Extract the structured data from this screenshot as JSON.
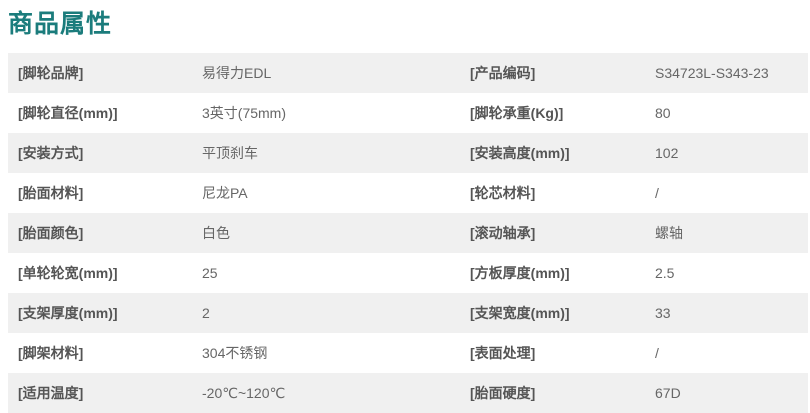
{
  "title": "商品属性",
  "rows": [
    {
      "label1": "[脚轮品牌]",
      "value1": "易得力EDL",
      "label2": "[产品编码]",
      "value2": "S34723L-S343-23"
    },
    {
      "label1": "[脚轮直径(mm)]",
      "value1": "3英寸(75mm)",
      "label2": "[脚轮承重(Kg)]",
      "value2": "80"
    },
    {
      "label1": "[安装方式]",
      "value1": "平顶刹车",
      "label2": "[安装高度(mm)]",
      "value2": "102"
    },
    {
      "label1": "[胎面材料]",
      "value1": "尼龙PA",
      "label2": "[轮芯材料]",
      "value2": "/"
    },
    {
      "label1": "[胎面颜色]",
      "value1": "白色",
      "label2": "[滚动轴承]",
      "value2": "螺轴"
    },
    {
      "label1": "[单轮轮宽(mm)]",
      "value1": "25",
      "label2": "[方板厚度(mm)]",
      "value2": "2.5"
    },
    {
      "label1": "[支架厚度(mm)]",
      "value1": "2",
      "label2": "[支架宽度(mm)]",
      "value2": "33"
    },
    {
      "label1": "[脚架材料]",
      "value1": "304不锈钢",
      "label2": "[表面处理]",
      "value2": "/"
    },
    {
      "label1": "[适用温度]",
      "value1": "-20℃~120℃",
      "label2": "[胎面硬度]",
      "value2": "67D"
    }
  ],
  "colors": {
    "title": "#1b7c7c",
    "row_alt": "#f0f0f0"
  }
}
